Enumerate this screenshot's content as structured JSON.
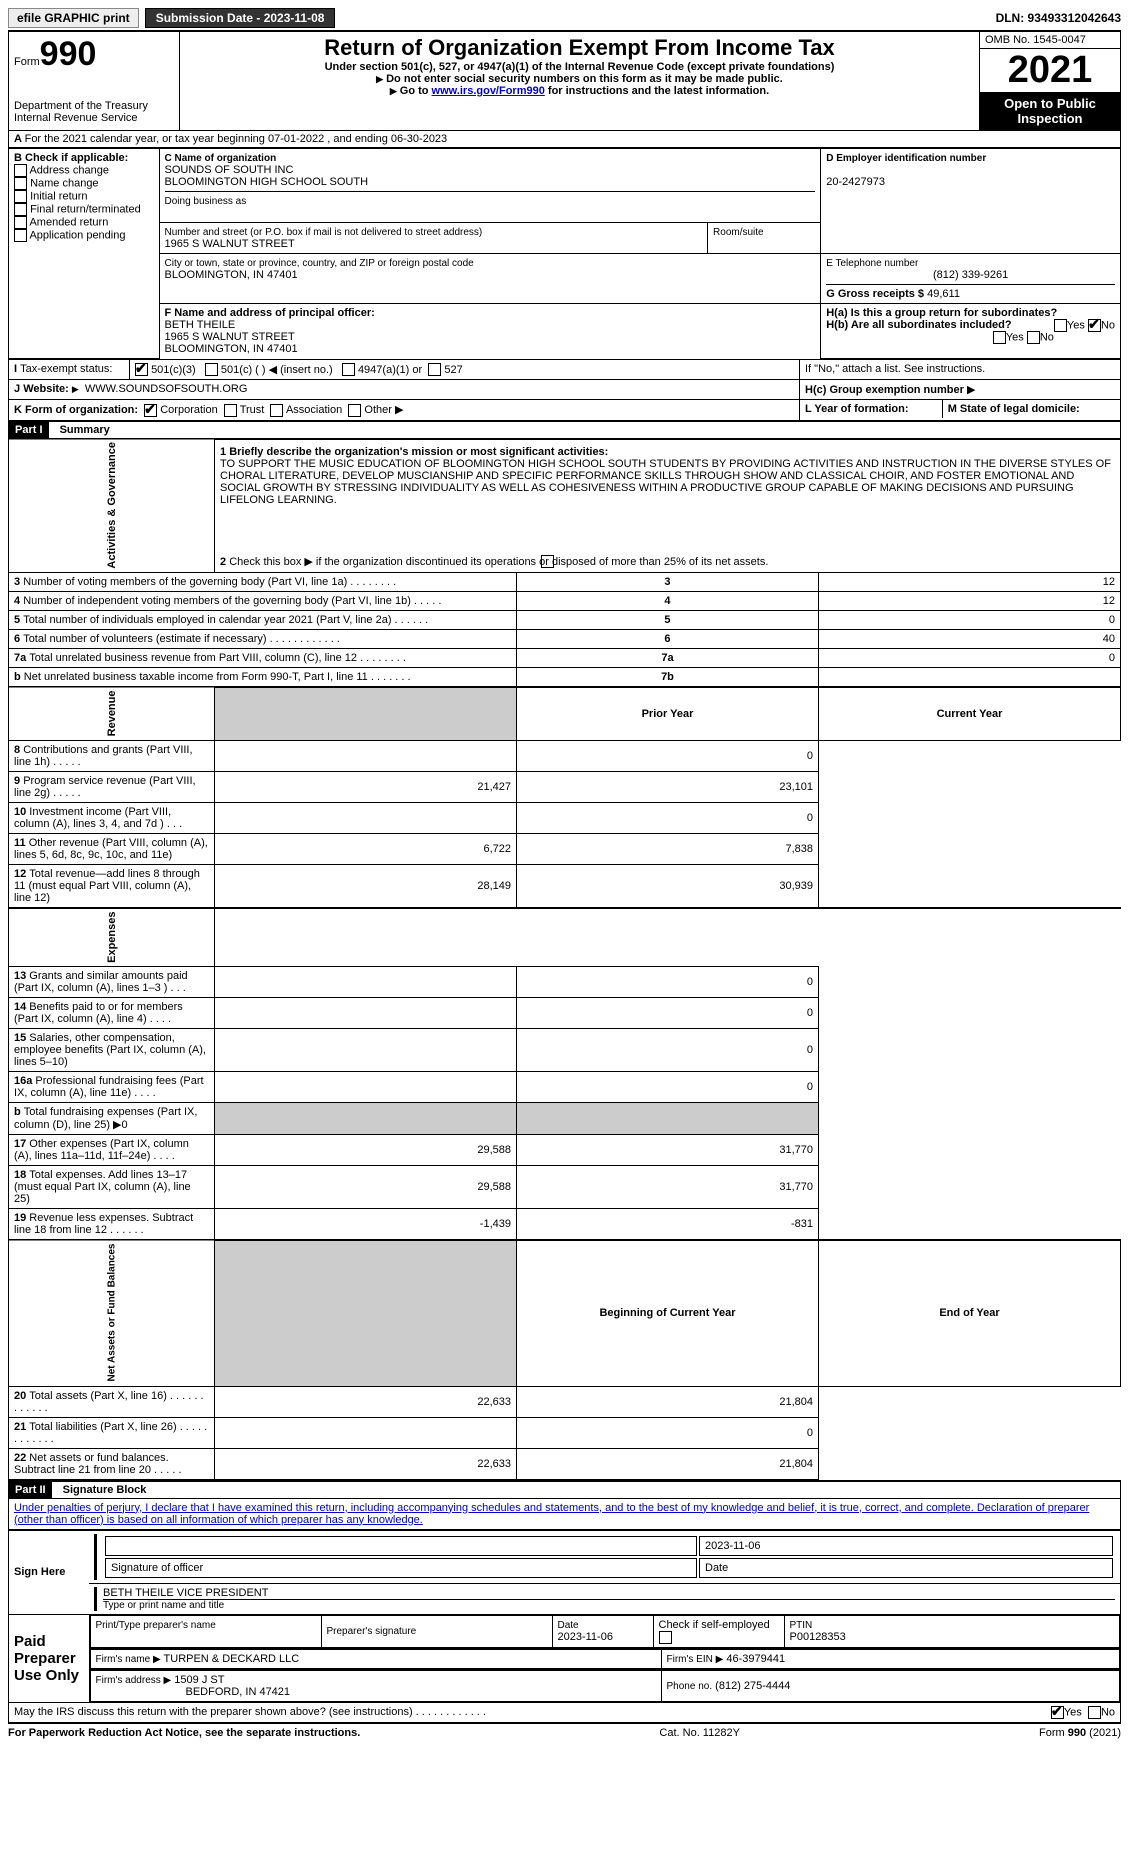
{
  "topbar": {
    "efile_label": "efile GRAPHIC print",
    "submission_label": "Submission Date - 2023-11-08",
    "dln_label": "DLN: 93493312042643"
  },
  "header": {
    "form_word": "Form",
    "form_num": "990",
    "title": "Return of Organization Exempt From Income Tax",
    "sub1": "Under section 501(c), 527, or 4947(a)(1) of the Internal Revenue Code (except private foundations)",
    "sub2": "Do not enter social security numbers on this form as it may be made public.",
    "sub3_pre": "Go to ",
    "sub3_link": "www.irs.gov/Form990",
    "sub3_post": " for instructions and the latest information.",
    "omb": "OMB No. 1545-0047",
    "year": "2021",
    "open_public": "Open to Public Inspection",
    "dept": "Department of the Treasury",
    "irs": "Internal Revenue Service"
  },
  "sectionA": {
    "a_line": "For the 2021 calendar year, or tax year beginning 07-01-2022   , and ending 06-30-2023",
    "b_label": "B Check if applicable:",
    "b_opts": [
      "Address change",
      "Name change",
      "Initial return",
      "Final return/terminated",
      "Amended return",
      "Application pending"
    ],
    "c_label": "C Name of organization",
    "org1": "SOUNDS OF SOUTH INC",
    "org2": "BLOOMINGTON HIGH SCHOOL SOUTH",
    "dba_label": "Doing business as",
    "addr_label": "Number and street (or P.O. box if mail is not delivered to street address)",
    "room_label": "Room/suite",
    "addr": "1965 S WALNUT STREET",
    "city_label": "City or town, state or province, country, and ZIP or foreign postal code",
    "city": "BLOOMINGTON, IN  47401",
    "d_label": "D Employer identification number",
    "d_val": "20-2427973",
    "e_label": "E Telephone number",
    "e_val": "(812) 339-9261",
    "g_label": "G Gross receipts $ ",
    "g_val": "49,611",
    "f_label": "F Name and address of principal officer:",
    "f_name": "BETH THEILE",
    "f_addr1": "1965 S WALNUT STREET",
    "f_addr2": "BLOOMINGTON, IN  47401",
    "ha_label": "H(a)  Is this a group return for subordinates?",
    "hb_label": "H(b)  Are all subordinates included?",
    "hb_note": "If \"No,\" attach a list. See instructions.",
    "hc_label": "H(c)  Group exemption number",
    "yes": "Yes",
    "no": "No",
    "i_label": "Tax-exempt status:",
    "i_501c3": "501(c)(3)",
    "i_501c": "501(c) (  )",
    "i_insert": "(insert no.)",
    "i_4947": "4947(a)(1) or",
    "i_527": "527",
    "j_label": "Website:",
    "j_val": "WWW.SOUNDSOFSOUTH.ORG",
    "k_label": "K Form of organization:",
    "k_corp": "Corporation",
    "k_trust": "Trust",
    "k_assoc": "Association",
    "k_other": "Other",
    "l_label": "L Year of formation:",
    "m_label": "M State of legal domicile:"
  },
  "part1": {
    "header": "Part I",
    "title": "Summary",
    "q1_label": "1  Briefly describe the organization's mission or most significant activities:",
    "q1_text": "TO SUPPORT THE MUSIC EDUCATION OF BLOOMINGTON HIGH SCHOOL SOUTH STUDENTS BY PROVIDING ACTIVITIES AND INSTRUCTION IN THE DIVERSE STYLES OF CHORAL LITERATURE, DEVELOP MUSCIANSHIP AND SPECIFIC PERFORMANCE SKILLS THROUGH SHOW AND CLASSICAL CHOIR, AND FOSTER EMOTIONAL AND SOCIAL GROWTH BY STRESSING INDIVIDUALITY AS WELL AS COHESIVENESS WITHIN A PRODUCTIVE GROUP CAPABLE OF MAKING DECISIONS AND PURSUING LIFELONG LEARNING.",
    "q2": "Check this box ▶       if the organization discontinued its operations or disposed of more than 25% of its net assets.",
    "sideA": "Activities & Governance",
    "sideB": "Revenue",
    "sideC": "Expenses",
    "sideD": "Net Assets or Fund Balances",
    "rows_gov": [
      {
        "n": "3",
        "label": "Number of voting members of the governing body (Part VI, line 1a)  .    .    .    .    .    .    .    .",
        "c": "3",
        "v": "12"
      },
      {
        "n": "4",
        "label": "Number of independent voting members of the governing body (Part VI, line 1b)   .    .    .    .    .",
        "c": "4",
        "v": "12"
      },
      {
        "n": "5",
        "label": "Total number of individuals employed in calendar year 2021 (Part V, line 2a)    .    .    .    .    .    .",
        "c": "5",
        "v": "0"
      },
      {
        "n": "6",
        "label": "Total number of volunteers (estimate if necessary)   .    .    .    .    .    .    .    .    .    .    .    .",
        "c": "6",
        "v": "40"
      },
      {
        "n": "7a",
        "label": "Total unrelated business revenue from Part VIII, column (C), line 12   .    .    .    .    .    .    .    .",
        "c": "7a",
        "v": "0"
      },
      {
        "n": "b",
        "label": "Net unrelated business taxable income from Form 990-T, Part I, line 11   .    .    .    .    .    .    .",
        "c": "7b",
        "v": ""
      }
    ],
    "prior_label": "Prior Year",
    "current_label": "Current Year",
    "rows_rev": [
      {
        "n": "8",
        "label": "Contributions and grants (Part VIII, line 1h)   .    .    .    .    .",
        "p": "",
        "c": "0"
      },
      {
        "n": "9",
        "label": "Program service revenue (Part VIII, line 2g)    .    .    .    .    .",
        "p": "21,427",
        "c": "23,101"
      },
      {
        "n": "10",
        "label": "Investment income (Part VIII, column (A), lines 3, 4, and 7d )    .    .    .",
        "p": "",
        "c": "0"
      },
      {
        "n": "11",
        "label": "Other revenue (Part VIII, column (A), lines 5, 6d, 8c, 9c, 10c, and 11e)",
        "p": "6,722",
        "c": "7,838"
      },
      {
        "n": "12",
        "label": "Total revenue—add lines 8 through 11 (must equal Part VIII, column (A), line 12)",
        "p": "28,149",
        "c": "30,939"
      }
    ],
    "rows_exp": [
      {
        "n": "13",
        "label": "Grants and similar amounts paid (Part IX, column (A), lines 1–3 )  .    .    .",
        "p": "",
        "c": "0"
      },
      {
        "n": "14",
        "label": "Benefits paid to or for members (Part IX, column (A), line 4)   .    .    .    .",
        "p": "",
        "c": "0"
      },
      {
        "n": "15",
        "label": "Salaries, other compensation, employee benefits (Part IX, column (A), lines 5–10)",
        "p": "",
        "c": "0"
      },
      {
        "n": "16a",
        "label": "Professional fundraising fees (Part IX, column (A), line 11e)    .    .    .    .",
        "p": "",
        "c": "0"
      },
      {
        "n": "b",
        "label": "Total fundraising expenses (Part IX, column (D), line 25) ▶0",
        "p": "shade",
        "c": "shade"
      },
      {
        "n": "17",
        "label": "Other expenses (Part IX, column (A), lines 11a–11d, 11f–24e)    .    .    .    .",
        "p": "29,588",
        "c": "31,770"
      },
      {
        "n": "18",
        "label": "Total expenses. Add lines 13–17 (must equal Part IX, column (A), line 25)",
        "p": "29,588",
        "c": "31,770"
      },
      {
        "n": "19",
        "label": "Revenue less expenses. Subtract line 18 from line 12   .    .    .    .    .    .",
        "p": "-1,439",
        "c": "-831"
      }
    ],
    "boy_label": "Beginning of Current Year",
    "eoy_label": "End of Year",
    "rows_net": [
      {
        "n": "20",
        "label": "Total assets (Part X, line 16)   .    .    .    .    .    .    .    .    .    .    .    .",
        "p": "22,633",
        "c": "21,804"
      },
      {
        "n": "21",
        "label": "Total liabilities (Part X, line 26)    .    .    .    .    .    .    .    .    .    .    .    .",
        "p": "",
        "c": "0"
      },
      {
        "n": "22",
        "label": "Net assets or fund balances. Subtract line 21 from line 20    .    .    .    .    .",
        "p": "22,633",
        "c": "21,804"
      }
    ]
  },
  "part2": {
    "header": "Part II",
    "title": "Signature Block",
    "decl": "Under penalties of perjury, I declare that I have examined this return, including accompanying schedules and statements, and to the best of my knowledge and belief, it is true, correct, and complete. Declaration of preparer (other than officer) is based on all information of which preparer has any knowledge.",
    "sign_here": "Sign Here",
    "sig_officer": "Signature of officer",
    "sig_date": "2023-11-06",
    "sig_name": "BETH THEILE  VICE PRESIDENT",
    "sig_name_label": "Type or print name and title",
    "paid": "Paid Preparer Use Only",
    "prep_name_label": "Print/Type preparer's name",
    "prep_sig_label": "Preparer's signature",
    "prep_date_label": "Date",
    "prep_date": "2023-11-06",
    "prep_check_label": "Check         if self-employed",
    "ptin_label": "PTIN",
    "ptin": "P00128353",
    "firm_name_label": "Firm's name    ▶",
    "firm_name": "TURPEN & DECKARD LLC",
    "firm_ein_label": "Firm's EIN ▶",
    "firm_ein": "46-3979441",
    "firm_addr_label": "Firm's address ▶",
    "firm_addr1": "1509 J ST",
    "firm_addr2": "BEDFORD, IN  47421",
    "phone_label": "Phone no.",
    "phone": "(812) 275-4444",
    "may_irs": "May the IRS discuss this return with the preparer shown above? (see instructions)   .    .    .    .    .    .    .    .    .    .    .    ."
  },
  "footer": {
    "pra": "For Paperwork Reduction Act Notice, see the separate instructions.",
    "cat": "Cat. No. 11282Y",
    "form": "Form 990 (2021)"
  }
}
